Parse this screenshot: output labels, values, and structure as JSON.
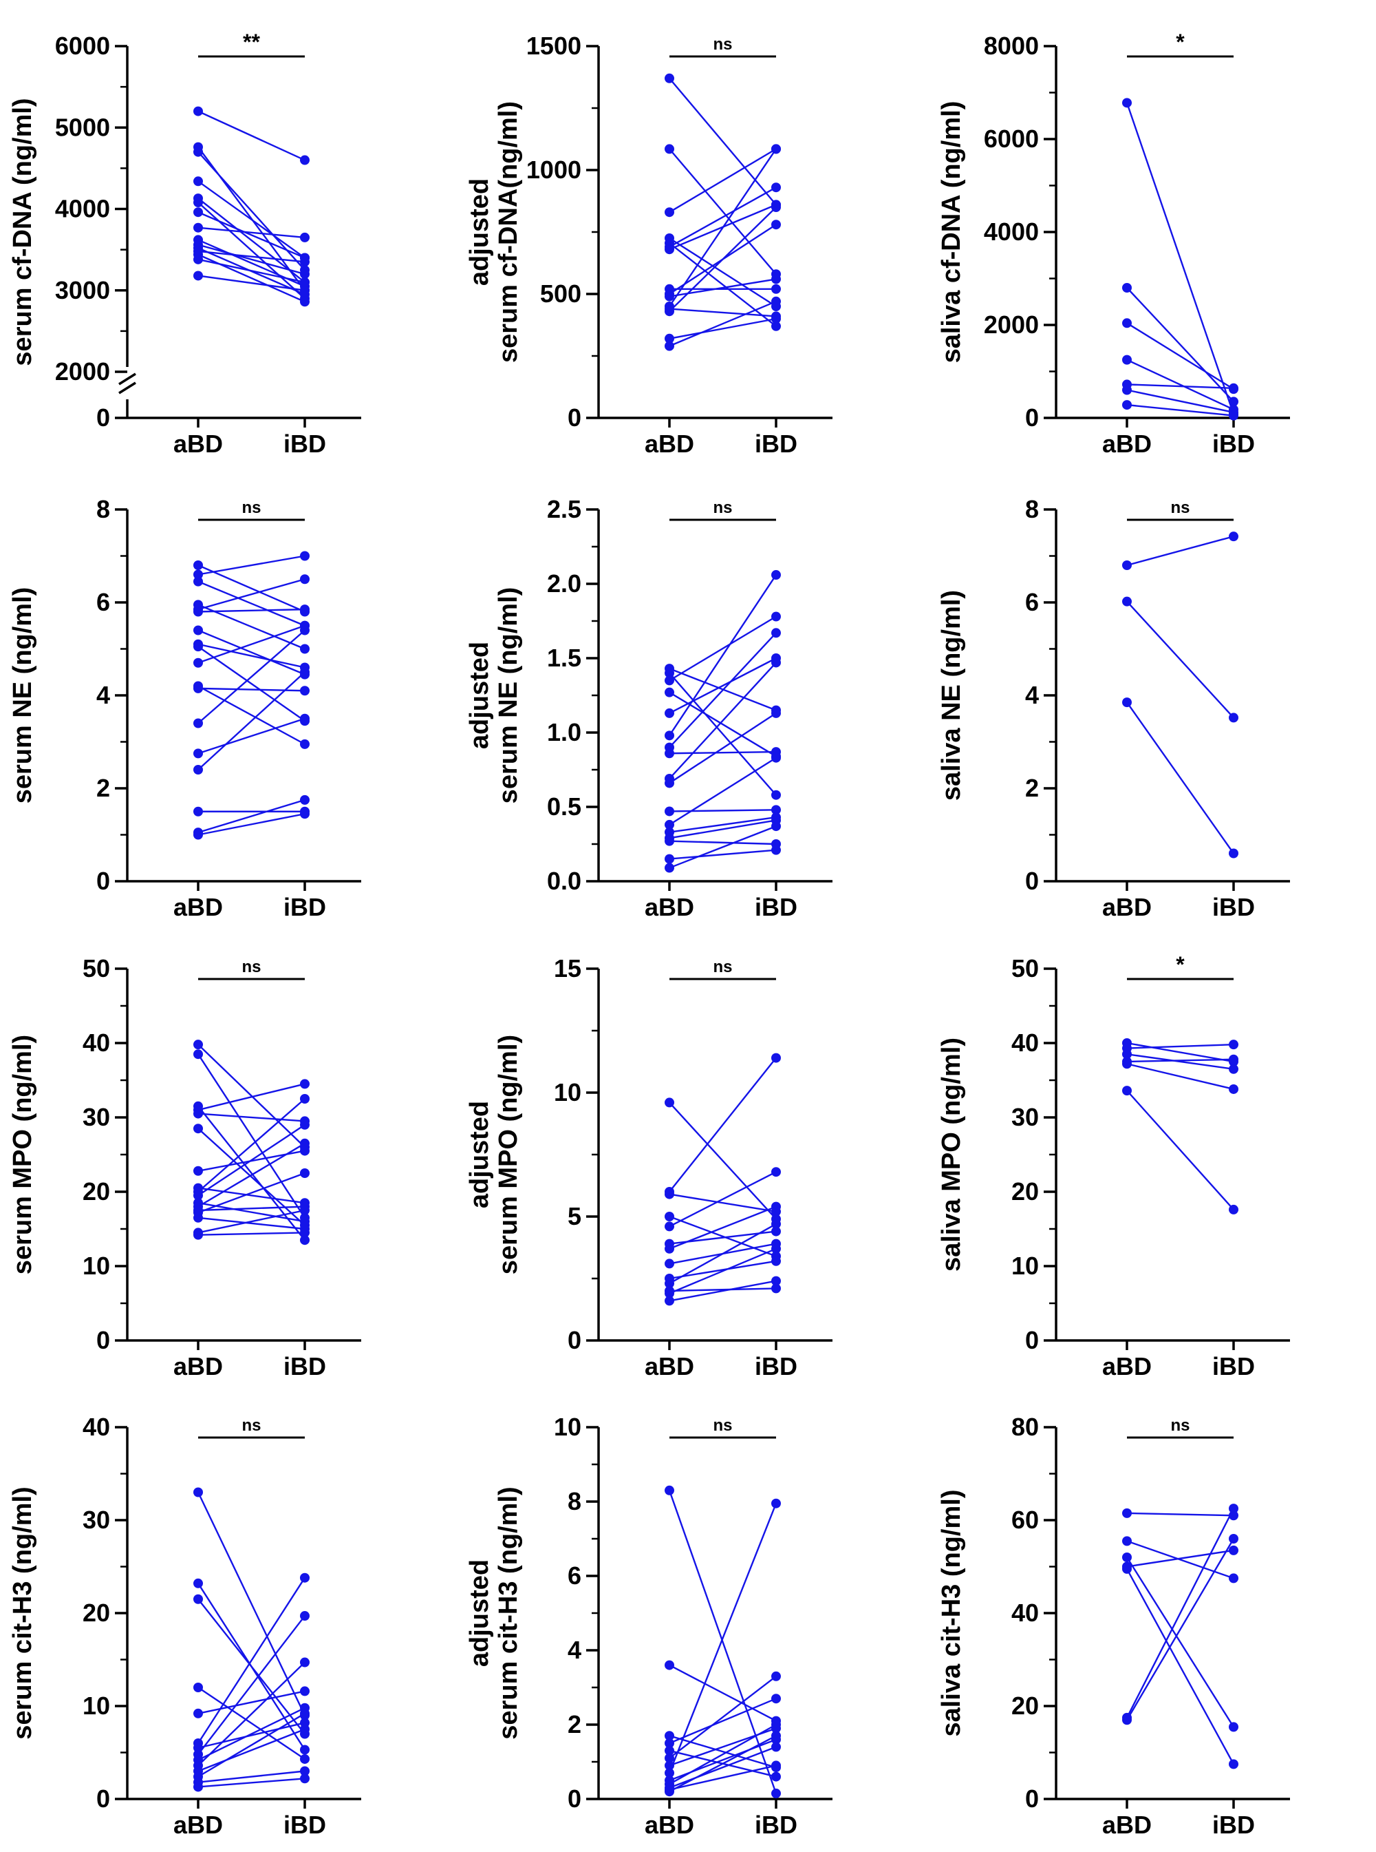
{
  "colors": {
    "series": "#1414e8",
    "axis": "#000000"
  },
  "chart_data": [
    {
      "type": "line",
      "title": "",
      "xlabel": "",
      "ylabel": [
        "serum cf-DNA (ng/ml)"
      ],
      "categories": [
        "aBD",
        "iBD"
      ],
      "ylim": [
        0,
        6000
      ],
      "axis_break": {
        "lower": [
          0,
          0
        ],
        "upper": [
          2000,
          6000
        ]
      },
      "yticks": [
        "0",
        "2000",
        "3000",
        "4000",
        "5000",
        "6000"
      ],
      "significance": "**",
      "pairs": [
        [
          5200,
          4600
        ],
        [
          4760,
          3000
        ],
        [
          4700,
          3250
        ],
        [
          4340,
          3400
        ],
        [
          4130,
          3100
        ],
        [
          4080,
          2900
        ],
        [
          3960,
          3400
        ],
        [
          3770,
          3650
        ],
        [
          3620,
          3050
        ],
        [
          3560,
          3200
        ],
        [
          3520,
          2950
        ],
        [
          3480,
          3350
        ],
        [
          3440,
          2860
        ],
        [
          3380,
          3100
        ],
        [
          3180,
          3000
        ]
      ]
    },
    {
      "type": "line",
      "title": "",
      "xlabel": "",
      "ylabel": [
        "adjusted",
        "serum cf-DNA(ng/ml)"
      ],
      "categories": [
        "aBD",
        "iBD"
      ],
      "ylim": [
        0,
        1500
      ],
      "yticks": [
        "0",
        "500",
        "1000",
        "1500"
      ],
      "significance": "ns",
      "pairs": [
        [
          1370,
          860
        ],
        [
          1085,
          580
        ],
        [
          830,
          1085
        ],
        [
          725,
          450
        ],
        [
          705,
          370
        ],
        [
          690,
          930
        ],
        [
          680,
          860
        ],
        [
          520,
          520
        ],
        [
          500,
          780
        ],
        [
          490,
          560
        ],
        [
          450,
          1085
        ],
        [
          440,
          410
        ],
        [
          430,
          850
        ],
        [
          320,
          400
        ],
        [
          290,
          470
        ]
      ]
    },
    {
      "type": "line",
      "title": "",
      "xlabel": "",
      "ylabel": [
        "saliva cf-DNA (ng/ml)"
      ],
      "categories": [
        "aBD",
        "iBD"
      ],
      "ylim": [
        0,
        8000
      ],
      "yticks": [
        "0",
        "2000",
        "4000",
        "6000",
        "8000"
      ],
      "significance": "*",
      "pairs": [
        [
          6780,
          80
        ],
        [
          2800,
          350
        ],
        [
          2040,
          620
        ],
        [
          1250,
          180
        ],
        [
          720,
          640
        ],
        [
          600,
          120
        ],
        [
          280,
          50
        ]
      ]
    },
    {
      "type": "line",
      "title": "",
      "xlabel": "",
      "ylabel": [
        "serum NE (ng/ml)"
      ],
      "categories": [
        "aBD",
        "iBD"
      ],
      "ylim": [
        0,
        8
      ],
      "yticks": [
        "0",
        "2",
        "4",
        "6",
        "8"
      ],
      "significance": "ns",
      "pairs": [
        [
          6.8,
          5.8
        ],
        [
          6.6,
          7.0
        ],
        [
          6.45,
          5.5
        ],
        [
          5.95,
          5.0
        ],
        [
          5.85,
          6.5
        ],
        [
          5.8,
          5.85
        ],
        [
          5.4,
          4.45
        ],
        [
          5.1,
          4.6
        ],
        [
          5.05,
          3.45
        ],
        [
          4.7,
          5.5
        ],
        [
          4.2,
          2.95
        ],
        [
          4.15,
          4.1
        ],
        [
          3.4,
          5.4
        ],
        [
          2.75,
          3.5
        ],
        [
          2.4,
          4.5
        ],
        [
          1.5,
          1.5
        ],
        [
          1.05,
          1.75
        ],
        [
          1.0,
          1.45
        ]
      ]
    },
    {
      "type": "line",
      "title": "",
      "xlabel": "",
      "ylabel": [
        "adjusted",
        "serum NE (ng/ml)"
      ],
      "categories": [
        "aBD",
        "iBD"
      ],
      "ylim": [
        0,
        2.5
      ],
      "yticks": [
        "0.0",
        "0.5",
        "1.0",
        "1.5",
        "2.0",
        "2.5"
      ],
      "significance": "ns",
      "pairs": [
        [
          1.43,
          1.15
        ],
        [
          1.4,
          0.58
        ],
        [
          1.35,
          1.78
        ],
        [
          1.27,
          0.84
        ],
        [
          1.13,
          1.5
        ],
        [
          0.98,
          2.06
        ],
        [
          0.9,
          1.67
        ],
        [
          0.86,
          0.87
        ],
        [
          0.69,
          1.47
        ],
        [
          0.66,
          1.13
        ],
        [
          0.47,
          0.48
        ],
        [
          0.38,
          0.83
        ],
        [
          0.33,
          0.43
        ],
        [
          0.29,
          0.41
        ],
        [
          0.27,
          0.25
        ],
        [
          0.15,
          0.21
        ],
        [
          0.09,
          0.37
        ]
      ]
    },
    {
      "type": "line",
      "title": "",
      "xlabel": "",
      "ylabel": [
        "saliva NE (ng/ml)"
      ],
      "categories": [
        "aBD",
        "iBD"
      ],
      "ylim": [
        0,
        8
      ],
      "yticks": [
        "0",
        "2",
        "4",
        "6",
        "8"
      ],
      "significance": "ns",
      "pairs": [
        [
          6.8,
          7.42
        ],
        [
          6.02,
          3.52
        ],
        [
          3.85,
          0.6
        ]
      ]
    },
    {
      "type": "line",
      "title": "",
      "xlabel": "",
      "ylabel": [
        "serum MPO (ng/ml)"
      ],
      "categories": [
        "aBD",
        "iBD"
      ],
      "ylim": [
        0,
        50
      ],
      "yticks": [
        "0",
        "10",
        "20",
        "30",
        "40",
        "50"
      ],
      "significance": "ns",
      "pairs": [
        [
          39.8,
          26.0
        ],
        [
          38.5,
          16.5
        ],
        [
          31.5,
          13.5
        ],
        [
          31.0,
          34.5
        ],
        [
          30.5,
          29.5
        ],
        [
          28.5,
          15.5
        ],
        [
          22.8,
          25.5
        ],
        [
          20.5,
          18.5
        ],
        [
          20.0,
          32.5
        ],
        [
          19.5,
          29.0
        ],
        [
          18.5,
          16.0
        ],
        [
          18.0,
          26.5
        ],
        [
          17.5,
          18.0
        ],
        [
          17.2,
          22.5
        ],
        [
          16.5,
          15.0
        ],
        [
          14.5,
          17.5
        ],
        [
          14.2,
          14.5
        ]
      ]
    },
    {
      "type": "line",
      "title": "",
      "xlabel": "",
      "ylabel": [
        "adjusted",
        "serum MPO (ng/ml)"
      ],
      "categories": [
        "aBD",
        "iBD"
      ],
      "ylim": [
        0,
        15
      ],
      "yticks": [
        "0",
        "5",
        "10",
        "15"
      ],
      "significance": "ns",
      "pairs": [
        [
          9.6,
          4.9
        ],
        [
          6.0,
          11.4
        ],
        [
          5.9,
          5.2
        ],
        [
          5.0,
          3.4
        ],
        [
          4.6,
          6.8
        ],
        [
          3.9,
          4.4
        ],
        [
          3.7,
          5.4
        ],
        [
          3.1,
          3.9
        ],
        [
          2.5,
          3.2
        ],
        [
          2.3,
          4.7
        ],
        [
          2.0,
          2.1
        ],
        [
          1.9,
          3.7
        ],
        [
          1.6,
          2.4
        ]
      ]
    },
    {
      "type": "line",
      "title": "",
      "xlabel": "",
      "ylabel": [
        "saliva MPO (ng/ml)"
      ],
      "categories": [
        "aBD",
        "iBD"
      ],
      "ylim": [
        0,
        50
      ],
      "yticks": [
        "0",
        "10",
        "20",
        "30",
        "40",
        "50"
      ],
      "significance": "*",
      "pairs": [
        [
          40.0,
          37.5
        ],
        [
          39.3,
          39.8
        ],
        [
          38.5,
          36.5
        ],
        [
          37.5,
          37.8
        ],
        [
          37.2,
          33.8
        ],
        [
          33.6,
          17.6
        ]
      ]
    },
    {
      "type": "line",
      "title": "",
      "xlabel": "",
      "ylabel": [
        "serum cit-H3 (ng/ml)"
      ],
      "categories": [
        "aBD",
        "iBD"
      ],
      "ylim": [
        0,
        40
      ],
      "yticks": [
        "0",
        "10",
        "20",
        "30",
        "40"
      ],
      "significance": "ns",
      "pairs": [
        [
          33.0,
          9.0
        ],
        [
          23.2,
          5.3
        ],
        [
          21.5,
          7.0
        ],
        [
          12.0,
          4.3
        ],
        [
          9.2,
          11.6
        ],
        [
          6.0,
          23.8
        ],
        [
          5.5,
          8.2
        ],
        [
          4.8,
          19.7
        ],
        [
          4.2,
          9.8
        ],
        [
          3.6,
          14.7
        ],
        [
          3.0,
          7.5
        ],
        [
          2.4,
          9.2
        ],
        [
          1.8,
          3.0
        ],
        [
          1.3,
          2.2
        ]
      ]
    },
    {
      "type": "line",
      "title": "",
      "xlabel": "",
      "ylabel": [
        "adjusted",
        "serum cit-H3 (ng/ml)"
      ],
      "categories": [
        "aBD",
        "iBD"
      ],
      "ylim": [
        0,
        10
      ],
      "yticks": [
        "0",
        "2",
        "4",
        "6",
        "8",
        "10"
      ],
      "significance": "ns",
      "pairs": [
        [
          8.3,
          0.15
        ],
        [
          3.6,
          2.1
        ],
        [
          1.7,
          0.85
        ],
        [
          1.5,
          2.7
        ],
        [
          1.3,
          0.6
        ],
        [
          1.1,
          3.3
        ],
        [
          0.9,
          1.9
        ],
        [
          0.7,
          7.95
        ],
        [
          0.5,
          1.6
        ],
        [
          0.4,
          2.0
        ],
        [
          0.3,
          1.4
        ],
        [
          0.25,
          0.9
        ],
        [
          0.2,
          1.7
        ]
      ]
    },
    {
      "type": "line",
      "title": "",
      "xlabel": "",
      "ylabel": [
        "saliva cit-H3 (ng/ml)"
      ],
      "categories": [
        "aBD",
        "iBD"
      ],
      "ylim": [
        0,
        80
      ],
      "yticks": [
        "0",
        "20",
        "40",
        "60",
        "80"
      ],
      "significance": "ns",
      "pairs": [
        [
          61.5,
          61.0
        ],
        [
          55.5,
          47.5
        ],
        [
          52.0,
          15.5
        ],
        [
          50.0,
          53.5
        ],
        [
          49.5,
          7.5
        ],
        [
          17.5,
          62.5
        ],
        [
          17.0,
          56.0
        ]
      ]
    }
  ]
}
